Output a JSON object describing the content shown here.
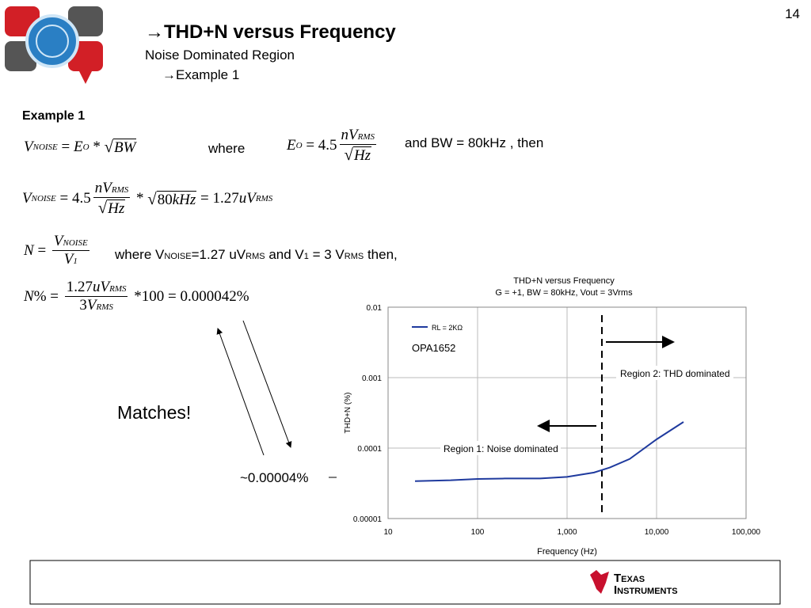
{
  "page_number": "14",
  "header": {
    "title": "→THD+N versus Frequency",
    "subtitle": "Noise Dominated Region",
    "subsection": "→Example 1"
  },
  "example_heading": "Example 1",
  "equations": {
    "eq1": [
      {
        "i": "V"
      },
      {
        "sub": "NOISE"
      },
      " = ",
      {
        "i": "E"
      },
      {
        "sub": "O"
      },
      " * ",
      {
        "sqrt": [
          {
            "i": "BW"
          }
        ]
      }
    ],
    "eq2": [
      {
        "i": "E"
      },
      {
        "sub": "O"
      },
      " = 4.5",
      {
        "num": [
          {
            "i": "nV"
          },
          {
            "sub": "RMS"
          }
        ],
        "den": [
          {
            "sqrt": [
              {
                "i": "Hz"
              }
            ]
          }
        ]
      }
    ],
    "eq3": [
      {
        "i": "V"
      },
      {
        "sub": "NOISE"
      },
      " = 4.5",
      {
        "num": [
          {
            "i": "nV"
          },
          {
            "sub": "RMS"
          }
        ],
        "den": [
          {
            "sqrt": [
              {
                "i": "Hz"
              }
            ]
          }
        ]
      },
      " * ",
      {
        "sqrt": [
          "80",
          {
            "i": "kHz"
          }
        ]
      },
      " = 1.27",
      {
        "i": "uV"
      },
      {
        "sub": "RMS"
      }
    ],
    "eq4": [
      {
        "i": "N"
      },
      " = ",
      {
        "num": [
          {
            "i": "V"
          },
          {
            "sub": "NOISE"
          }
        ],
        "den": [
          {
            "i": "V"
          },
          {
            "sub": "1"
          }
        ]
      }
    ],
    "eq5": [
      {
        "i": "N"
      },
      "% = ",
      {
        "num": [
          "1.27",
          {
            "i": "uV"
          },
          {
            "sub": "RMS"
          }
        ],
        "den": [
          "3",
          {
            "i": "V"
          },
          {
            "sub": "RMS"
          }
        ]
      },
      " *100 = 0.000042%"
    ]
  },
  "texts": {
    "where": "where",
    "bw": "and BW = 80kHz , then",
    "condition": [
      "where V",
      {
        "sub": "NOISE"
      },
      "=1.27 uV",
      {
        "sub": "RMS"
      },
      " and V",
      {
        "sub": "1"
      },
      " = 3 V",
      {
        "sub": "RMS"
      },
      " then,"
    ],
    "matches": "Matches!",
    "approx": "~0.00004%"
  },
  "footer": {
    "logo_lines": [
      "Texas",
      "Instruments"
    ]
  },
  "chart_data": {
    "type": "line",
    "title": "THD+N versus Frequency",
    "subtitle": "G = +1, BW = 80kHz, Vout = 3Vrms",
    "x_label": "Frequency (Hz)",
    "y_label": "THD+N (%)",
    "x_log": true,
    "y_log": true,
    "grid": true,
    "legend": "upper left",
    "xlim": [
      10,
      100000
    ],
    "ylim": [
      1e-05,
      0.01
    ],
    "xticks": [
      10,
      100,
      {
        "value": 1000,
        "label": "1,000"
      },
      {
        "value": 10000,
        "label": "10,000"
      },
      {
        "value": 100000,
        "label": "100,000"
      }
    ],
    "yticks": [
      1e-05,
      0.0001,
      0.001,
      0.01
    ],
    "x": [
      20,
      50,
      100,
      200,
      500,
      1000,
      2000,
      3000,
      5000,
      10000,
      20000
    ],
    "series": [
      {
        "name": "RL =  2KΩ",
        "color": "#1f3a9e",
        "values": [
          3.4e-05,
          3.5e-05,
          3.65e-05,
          3.7e-05,
          3.7e-05,
          3.9e-05,
          4.5e-05,
          5.3e-05,
          7e-05,
          0.000133,
          0.000235
        ]
      }
    ],
    "vline": 2450,
    "annotations": [
      "OPA1652",
      "Region 2: THD dominated",
      "Region 1: Noise dominated"
    ]
  }
}
